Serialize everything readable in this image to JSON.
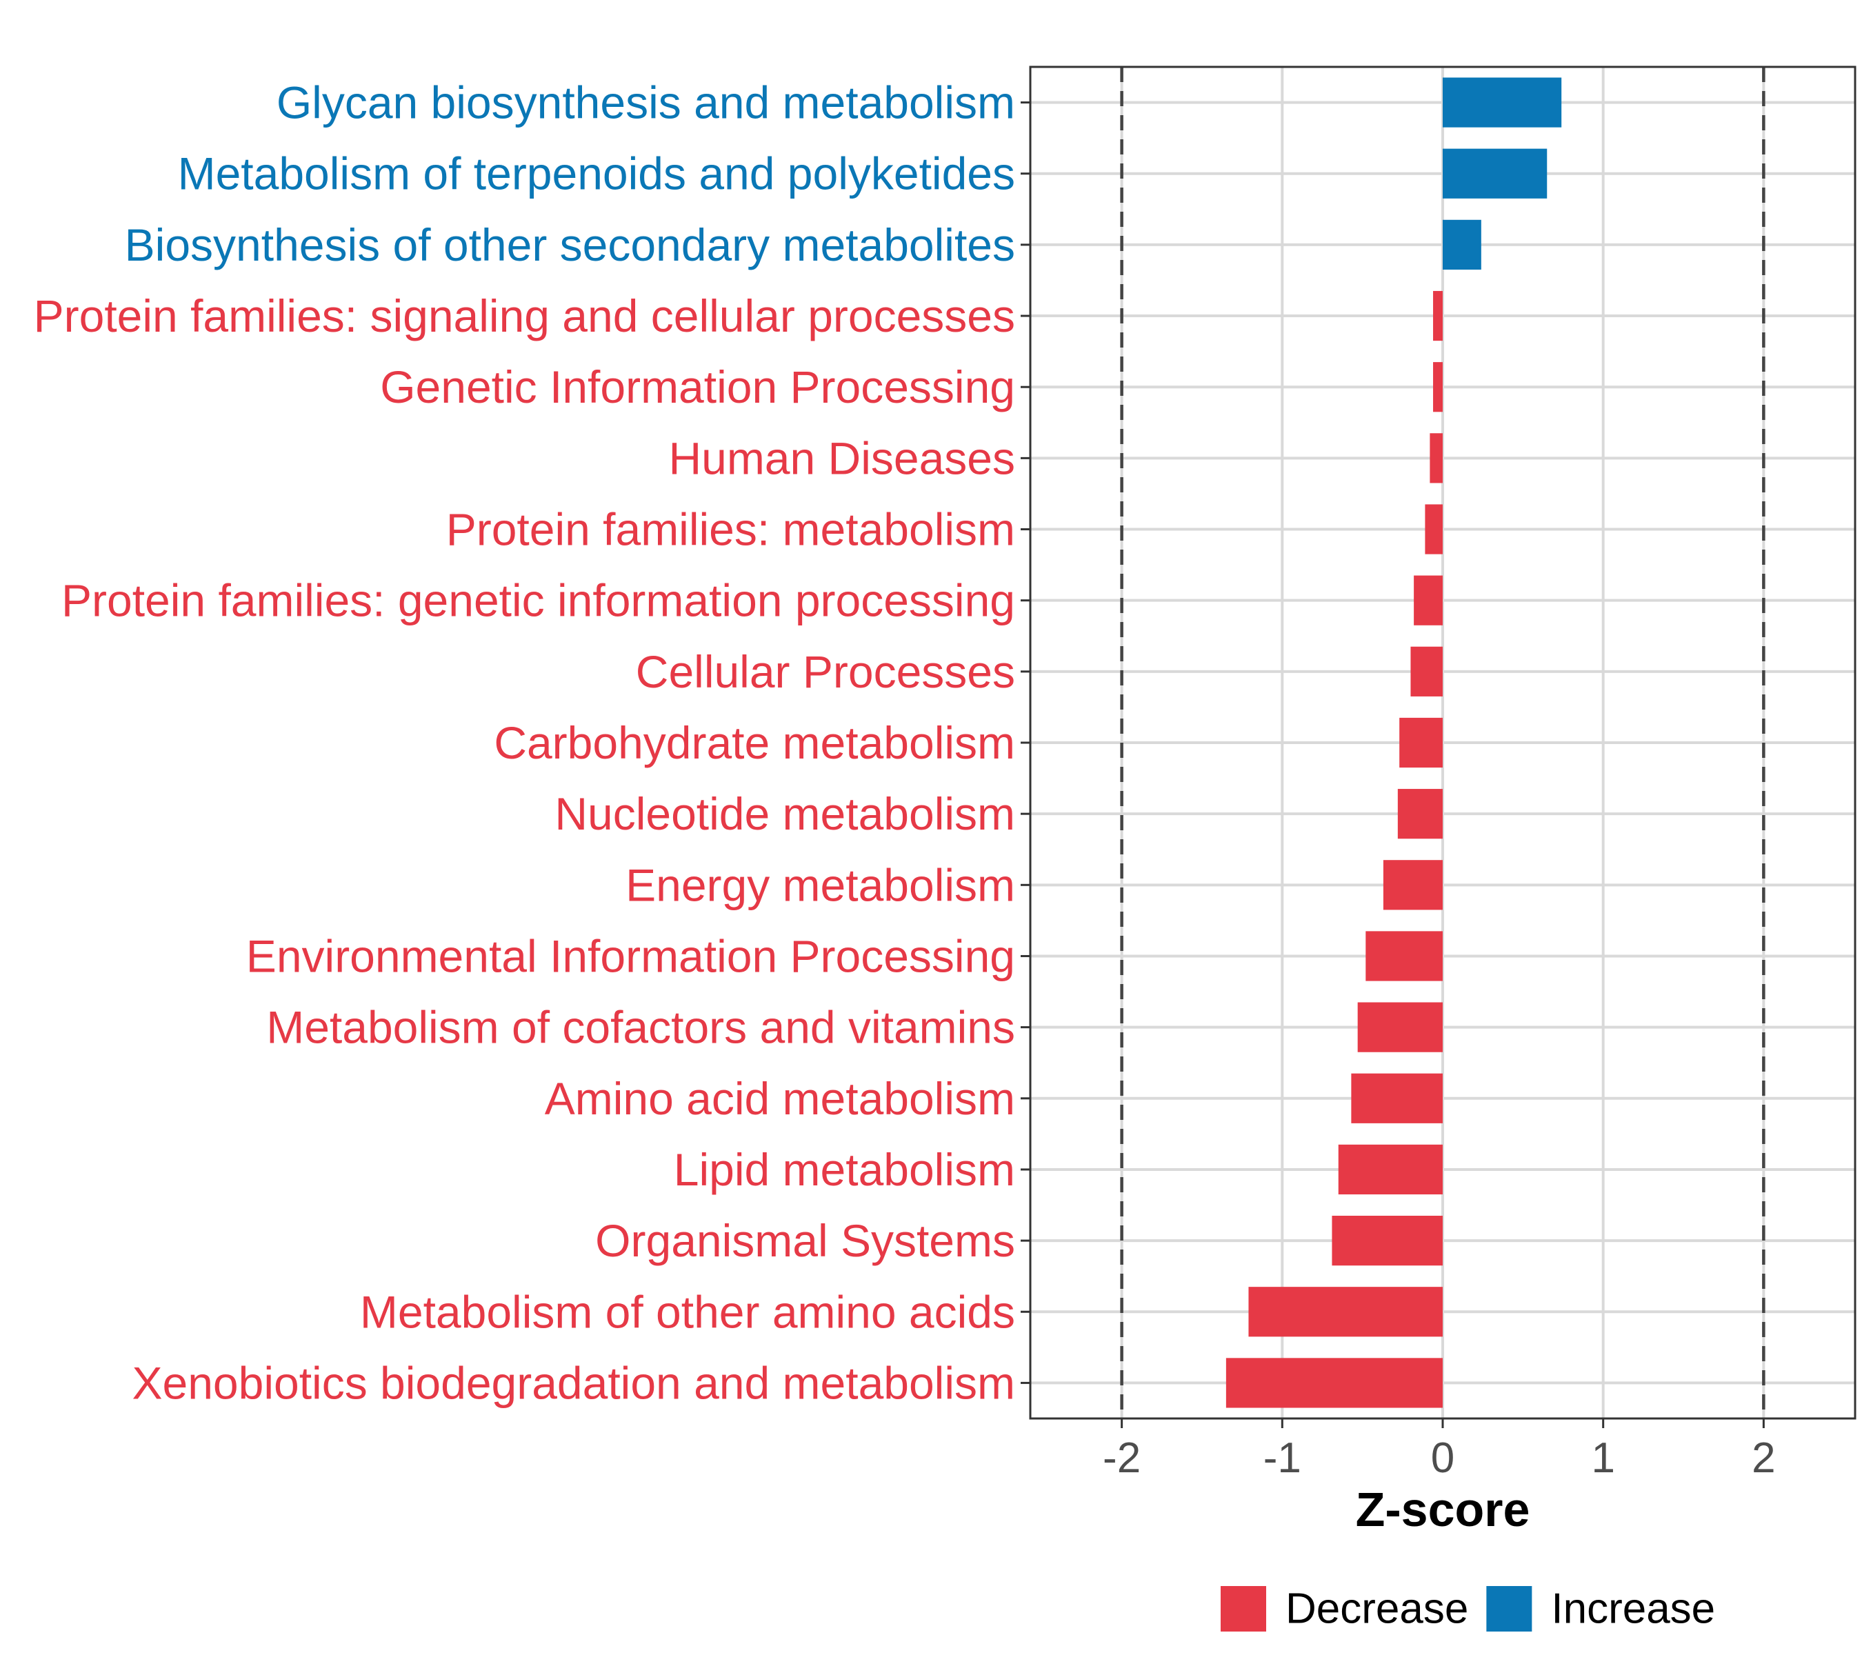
{
  "chart_data": {
    "type": "bar",
    "orientation": "horizontal",
    "xlabel": "Z-score",
    "ylabel": "",
    "xlim": [
      -2.57,
      2.57
    ],
    "xticks": [
      -2,
      -1,
      0,
      1,
      2
    ],
    "xtick_labels": [
      "-2",
      "-1",
      "0",
      "1",
      "2"
    ],
    "reference_lines": [
      -2,
      2
    ],
    "grid": true,
    "colors": {
      "Decrease": "#e63946",
      "Increase": "#0a77b6"
    },
    "legend": {
      "position": "bottom",
      "items": [
        {
          "label": "Decrease",
          "color": "#e63946"
        },
        {
          "label": "Increase",
          "color": "#0a77b6"
        }
      ]
    },
    "categories": [
      "Glycan biosynthesis and metabolism",
      "Metabolism of terpenoids and polyketides",
      "Biosynthesis of other secondary metabolites",
      "Protein families: signaling and cellular processes",
      "Genetic Information Processing",
      "Human Diseases",
      "Protein families: metabolism",
      "Protein families: genetic information processing",
      "Cellular Processes",
      "Carbohydrate metabolism",
      "Nucleotide metabolism",
      "Energy metabolism",
      "Environmental Information Processing",
      "Metabolism of cofactors and vitamins",
      "Amino acid metabolism",
      "Lipid metabolism",
      "Organismal Systems",
      "Metabolism of other amino acids",
      "Xenobiotics biodegradation and metabolism"
    ],
    "values": [
      0.74,
      0.65,
      0.24,
      -0.06,
      -0.06,
      -0.08,
      -0.11,
      -0.18,
      -0.2,
      -0.27,
      -0.28,
      -0.37,
      -0.48,
      -0.53,
      -0.57,
      -0.65,
      -0.69,
      -1.21,
      -1.35
    ],
    "groups": [
      "Increase",
      "Increase",
      "Increase",
      "Decrease",
      "Decrease",
      "Decrease",
      "Decrease",
      "Decrease",
      "Decrease",
      "Decrease",
      "Decrease",
      "Decrease",
      "Decrease",
      "Decrease",
      "Decrease",
      "Decrease",
      "Decrease",
      "Decrease",
      "Decrease"
    ]
  }
}
